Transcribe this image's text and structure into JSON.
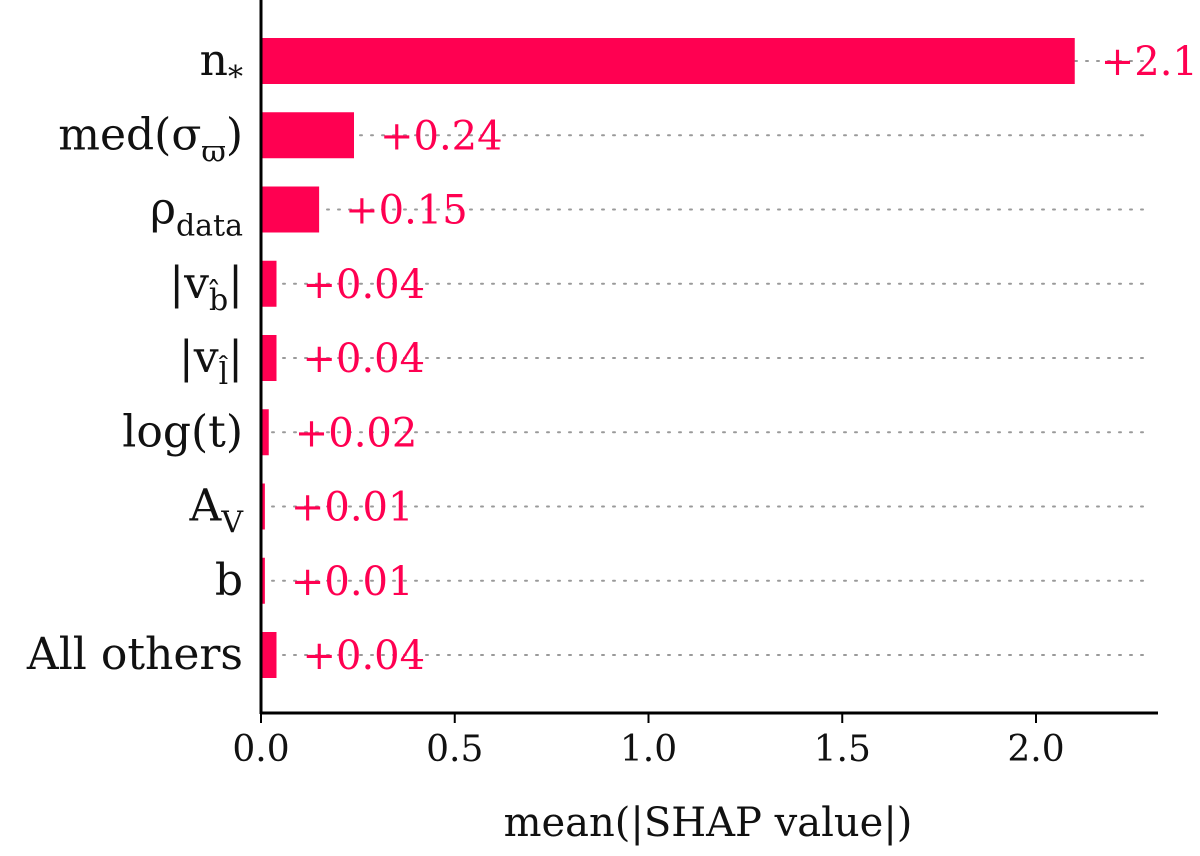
{
  "chart_data": {
    "type": "bar",
    "orientation": "horizontal",
    "xlabel": "mean(|SHAP value|)",
    "xlim": [
      0,
      2.3
    ],
    "xticks": [
      0.0,
      0.5,
      1.0,
      1.5,
      2.0
    ],
    "xtick_labels": [
      "0.0",
      "0.5",
      "1.0",
      "1.5",
      "2.0"
    ],
    "bar_color": "#ff0051",
    "gridlines": "dotted horizontal guides",
    "categories": [
      {
        "main": "n",
        "sub": "*"
      },
      {
        "main": "med(σ",
        "sub": "ϖ",
        "tail": ")"
      },
      {
        "main": "ρ",
        "sub": "data"
      },
      {
        "main": "|v",
        "sub": "b̂",
        "tail": "|"
      },
      {
        "main": "|v",
        "sub": "l̂",
        "tail": "|"
      },
      {
        "main": "log(t)"
      },
      {
        "main": "A",
        "sub": "V"
      },
      {
        "main": "b"
      },
      {
        "main": "All others"
      }
    ],
    "values": [
      2.1,
      0.24,
      0.15,
      0.04,
      0.04,
      0.02,
      0.01,
      0.01,
      0.04
    ],
    "value_labels": [
      "+2.1",
      "+0.24",
      "+0.15",
      "+0.04",
      "+0.04",
      "+0.02",
      "+0.01",
      "+0.01",
      "+0.04"
    ]
  }
}
